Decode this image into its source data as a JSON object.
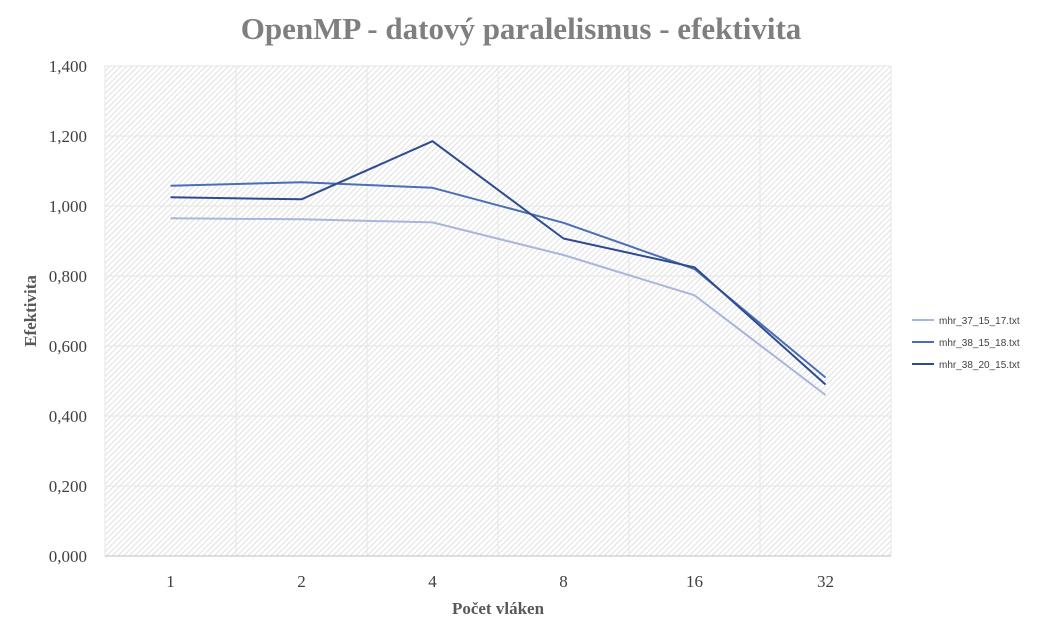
{
  "chart_data": {
    "type": "line",
    "title": "OpenMP - datový paralelismus - efektivita",
    "xlabel": "Počet vláken",
    "ylabel": "Efektivita",
    "categories": [
      "1",
      "2",
      "4",
      "8",
      "16",
      "32"
    ],
    "ylim": [
      0,
      1.4
    ],
    "yticks": [
      "0,000",
      "0,200",
      "0,400",
      "0,600",
      "0,800",
      "1,000",
      "1,200",
      "1,400"
    ],
    "ytick_values": [
      0,
      0.2,
      0.4,
      0.6,
      0.8,
      1.0,
      1.2,
      1.4
    ],
    "grid": true,
    "legend_position": "right",
    "series": [
      {
        "name": "mhr_37_15_17.txt",
        "color": "#a9b6dc",
        "values": [
          0.965,
          0.962,
          0.953,
          0.86,
          0.745,
          0.46
        ]
      },
      {
        "name": "mhr_38_15_18.txt",
        "color": "#4a6fb5",
        "values": [
          1.058,
          1.068,
          1.052,
          0.952,
          0.82,
          0.51
        ]
      },
      {
        "name": "mhr_38_20_15.txt",
        "color": "#2e4b8f",
        "values": [
          1.025,
          1.019,
          1.185,
          0.907,
          0.825,
          0.49
        ]
      }
    ]
  }
}
